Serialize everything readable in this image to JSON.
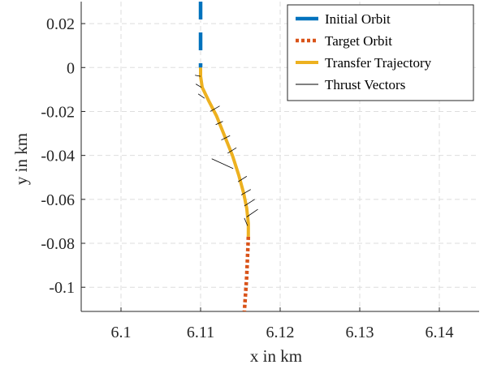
{
  "chart_data": {
    "type": "line",
    "xlabel": "x in km",
    "ylabel": "y in km",
    "xlim": [
      6.095,
      6.145
    ],
    "ylim": [
      -0.111,
      0.03
    ],
    "xticks": [
      6.1,
      6.11,
      6.12,
      6.13,
      6.14
    ],
    "xtick_labels": [
      "6.1",
      "6.11",
      "6.12",
      "6.13",
      "6.14"
    ],
    "yticks": [
      0.02,
      0,
      -0.02,
      -0.04,
      -0.06,
      -0.08,
      -0.1
    ],
    "ytick_labels": [
      "0.02",
      "0",
      "-0.02",
      "-0.04",
      "-0.06",
      "-0.08",
      "-0.1"
    ],
    "grid": true,
    "legend_location": "top-right",
    "series": [
      {
        "name": "Initial Orbit",
        "style": "dashed",
        "color": "#0072BD",
        "x": [
          6.11,
          6.11
        ],
        "y": [
          0.03,
          0.0
        ]
      },
      {
        "name": "Target Orbit",
        "style": "dotted",
        "color": "#D95319",
        "x": [
          6.116,
          6.1158,
          6.1155
        ],
        "y": [
          -0.077,
          -0.095,
          -0.111
        ]
      },
      {
        "name": "Transfer Trajectory",
        "style": "solid",
        "color": "#EDB120",
        "x": [
          6.11,
          6.11,
          6.1102,
          6.111,
          6.112,
          6.113,
          6.114,
          6.1148,
          6.1154,
          6.1158,
          6.116,
          6.116
        ],
        "y": [
          0.0,
          -0.004,
          -0.009,
          -0.015,
          -0.022,
          -0.031,
          -0.04,
          -0.049,
          -0.057,
          -0.064,
          -0.071,
          -0.077
        ]
      },
      {
        "name": "Thrust Vectors",
        "style": "segments",
        "color": "#000000",
        "origins_x": [
          6.11,
          6.1101,
          6.1105,
          6.1112,
          6.1119,
          6.1126,
          6.1134,
          6.1141,
          6.1147,
          6.1151,
          6.1155,
          6.1158,
          6.1159
        ],
        "origins_y": [
          -0.004,
          -0.009,
          -0.014,
          -0.02,
          -0.026,
          -0.033,
          -0.039,
          -0.046,
          -0.052,
          -0.058,
          -0.063,
          -0.068,
          -0.072
        ],
        "end_x": [
          6.1093,
          6.1094,
          6.1097,
          6.1124,
          6.1128,
          6.1137,
          6.1145,
          6.1114,
          6.1158,
          6.1163,
          6.1168,
          6.1172,
          6.1155
        ],
        "end_y": [
          -0.0035,
          -0.0075,
          -0.012,
          -0.0175,
          -0.0245,
          -0.031,
          -0.0365,
          -0.0415,
          -0.0495,
          -0.0555,
          -0.06,
          -0.0645,
          -0.0685
        ]
      }
    ]
  }
}
